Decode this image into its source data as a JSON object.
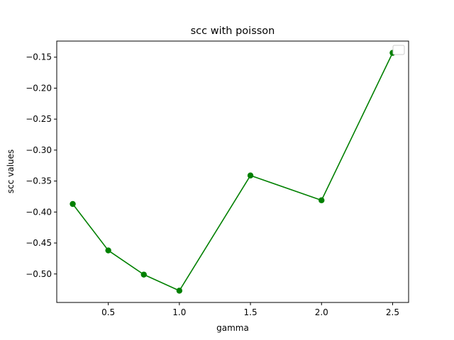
{
  "chart_data": {
    "type": "line",
    "title": "scc with poisson",
    "xlabel": "gamma",
    "ylabel": "scc values",
    "x": [
      0.25,
      0.5,
      0.75,
      1.0,
      1.5,
      2.0,
      2.5
    ],
    "series": [
      {
        "color": "#008000",
        "marker": "circle",
        "values": [
          -0.387,
          -0.462,
          -0.501,
          -0.527,
          -0.341,
          -0.381,
          -0.143
        ]
      }
    ],
    "xlim": [
      0.1375,
      2.6125
    ],
    "ylim": [
      -0.546,
      -0.124
    ],
    "xticks": [
      "0.5",
      "1.0",
      "1.5",
      "2.0",
      "2.5"
    ],
    "yticks": [
      "-0.15",
      "-0.20",
      "-0.25",
      "-0.30",
      "-0.35",
      "-0.40",
      "-0.45",
      "-0.50"
    ],
    "grid": false,
    "legend": {
      "placement": "top-right",
      "entries": []
    }
  }
}
